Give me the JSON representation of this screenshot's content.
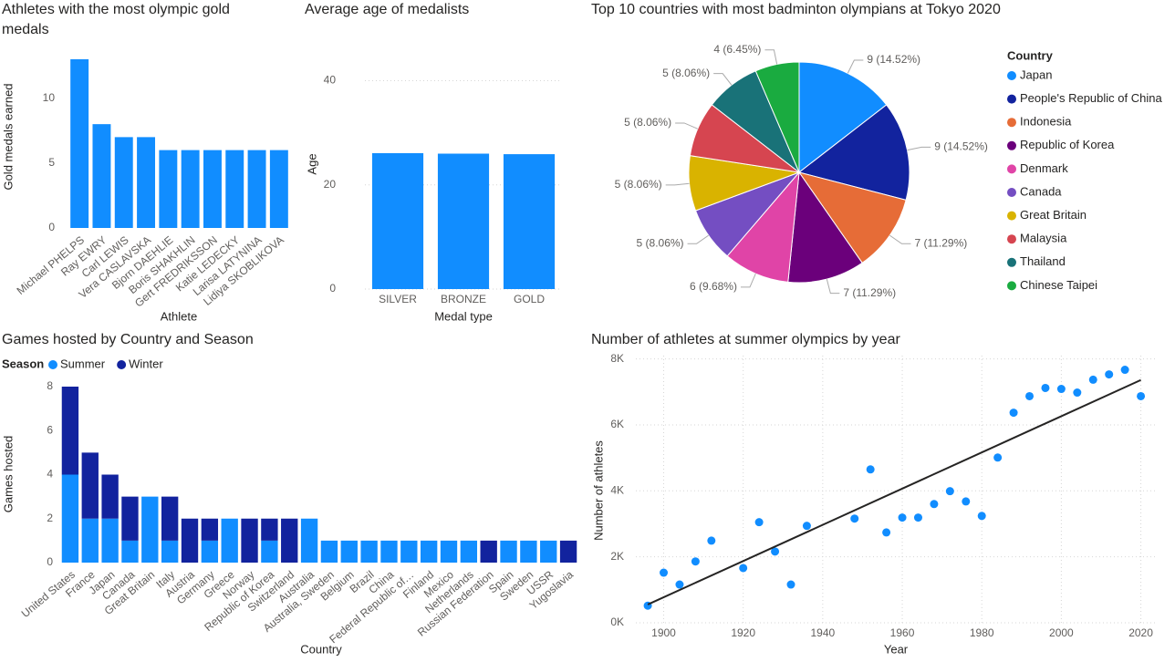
{
  "chart_data": [
    {
      "type": "bar",
      "title": "Athletes with the most olympic gold medals",
      "xlabel": "Athlete",
      "ylabel": "Gold medals earned",
      "categories": [
        "Michael PHELPS",
        "Ray EWRY",
        "Carl LEWIS",
        "Vera CASLAVSKA",
        "Bjorn DAEHLIE",
        "Boris SHAKHLIN",
        "Gert FREDRIKSSON",
        "Katie LEDECKY",
        "Larisa LATYNINA",
        "Lidiya SKOBLIKOVA"
      ],
      "values": [
        13,
        8,
        7,
        7,
        6,
        6,
        6,
        6,
        6,
        6
      ],
      "color": "#118DFF",
      "ylim": [
        0,
        13
      ],
      "yticks": [
        0,
        5,
        10
      ],
      "grid": false
    },
    {
      "type": "bar",
      "title": "Average age of medalists",
      "xlabel": "Medal type",
      "ylabel": "Age",
      "categories": [
        "SILVER",
        "BRONZE",
        "GOLD"
      ],
      "values": [
        26.1,
        26.0,
        25.9
      ],
      "color": "#118DFF",
      "ylim": [
        0,
        45
      ],
      "yticks": [
        0,
        20,
        40
      ],
      "grid": true
    },
    {
      "type": "pie",
      "title": "Top 10 countries with most badminton olympians at Tokyo 2020",
      "legend_title": "Country",
      "categories": [
        "Japan",
        "People's Republic of China",
        "Indonesia",
        "Republic of Korea",
        "Denmark",
        "Canada",
        "Great Britain",
        "Malaysia",
        "Thailand",
        "Chinese Taipei"
      ],
      "values": [
        9,
        9,
        7,
        7,
        6,
        5,
        5,
        5,
        5,
        4
      ],
      "value_labels": [
        "9 (14.52%)",
        "9 (14.52%)",
        "7 (11.29%)",
        "7 (11.29%)",
        "6 (9.68%)",
        "5 (8.06%)",
        "5 (8.06%)",
        "5 (8.06%)",
        "5 (8.06%)",
        "4 (6.45%)"
      ],
      "colors": [
        "#118DFF",
        "#12239E",
        "#E66C37",
        "#6B007B",
        "#E044A7",
        "#744EC2",
        "#D9B300",
        "#D64550",
        "#197278",
        "#1AAB40"
      ]
    },
    {
      "type": "bar",
      "title": "Games hosted by Country and Season",
      "xlabel": "Country",
      "ylabel": "Games hosted",
      "legend_title": "Season",
      "categories": [
        "United States",
        "France",
        "Japan",
        "Canada",
        "Great Britain",
        "Italy",
        "Austria",
        "Germany",
        "Greece",
        "Norway",
        "Republic of Korea",
        "Switzerland",
        "Australia",
        "Australia, Sweden",
        "Belgium",
        "Brazil",
        "China",
        "Federal Republic of…",
        "Finland",
        "Mexico",
        "Netherlands",
        "Russian Federation",
        "Spain",
        "Sweden",
        "USSR",
        "Yugoslavia"
      ],
      "series": [
        {
          "name": "Summer",
          "color": "#118DFF",
          "values": [
            4,
            2,
            2,
            1,
            3,
            1,
            0,
            1,
            2,
            0,
            1,
            0,
            2,
            1,
            1,
            1,
            1,
            1,
            1,
            1,
            1,
            0,
            1,
            1,
            1,
            0
          ]
        },
        {
          "name": "Winter",
          "color": "#12239E",
          "values": [
            4,
            3,
            2,
            2,
            0,
            2,
            2,
            1,
            0,
            2,
            1,
            2,
            0,
            0,
            0,
            0,
            0,
            0,
            0,
            0,
            0,
            1,
            0,
            0,
            0,
            1
          ]
        }
      ],
      "ylim": [
        0,
        8
      ],
      "yticks": [
        0,
        2,
        4,
        6,
        8
      ],
      "grid": false
    },
    {
      "type": "scatter",
      "title": "Number of athletes at summer olympics by year",
      "xlabel": "Year",
      "ylabel": "Number of athletes",
      "x": [
        1896,
        1900,
        1904,
        1908,
        1912,
        1920,
        1924,
        1928,
        1932,
        1936,
        1948,
        1952,
        1956,
        1960,
        1964,
        1968,
        1972,
        1976,
        1980,
        1984,
        1988,
        1992,
        1996,
        2000,
        2004,
        2008,
        2012,
        2016,
        2020
      ],
      "values": [
        520,
        1520,
        1160,
        1860,
        2490,
        1660,
        3050,
        2160,
        1160,
        2940,
        3160,
        4650,
        2740,
        3190,
        3190,
        3600,
        3990,
        3680,
        3240,
        5010,
        6370,
        6870,
        7120,
        7090,
        6980,
        7370,
        7530,
        7670,
        6870
      ],
      "color": "#118DFF",
      "trendline": true,
      "xlim": [
        1893,
        2024
      ],
      "ylim": [
        0,
        8100
      ],
      "xticks": [
        1900,
        1920,
        1940,
        1960,
        1980,
        2000,
        2020
      ],
      "yticks": [
        {
          "value": 0,
          "label": "0K"
        },
        {
          "value": 2000,
          "label": "2K"
        },
        {
          "value": 4000,
          "label": "4K"
        },
        {
          "value": 6000,
          "label": "6K"
        },
        {
          "value": 8000,
          "label": "8K"
        }
      ],
      "grid": true
    }
  ]
}
